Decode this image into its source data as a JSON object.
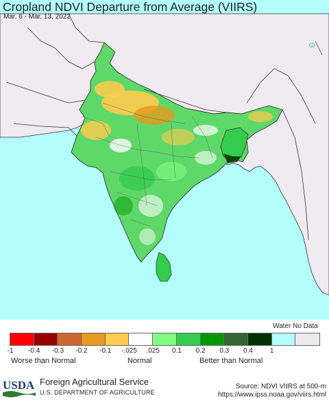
{
  "title": "Cropland NDVI Departure from Average (VIIRS)",
  "date_range": "Mar. 6 - Mar. 13, 2022",
  "colors": {
    "ocean": "#b3fdfd",
    "land_outside": "#efebf0",
    "no_data_land": "#ede9ee",
    "border": "#333333"
  },
  "legend": {
    "water_label": "Water",
    "no_data_label": "No Data",
    "swatch_colors": [
      "#ff0000",
      "#990000",
      "#cc6633",
      "#e69a1e",
      "#ffcc4d",
      "#ffffff",
      "#80ff80",
      "#33cc4d",
      "#009900",
      "#336633",
      "#003300",
      "#b3fdfd",
      "#ede9ee"
    ],
    "tick_labels": [
      "-1",
      "-0.4",
      "-0.3",
      "-0.2",
      "-0.1",
      "-.025",
      ".025",
      "0.1",
      "0.2",
      "0.3",
      "0.4",
      "1"
    ],
    "captions": {
      "worse": "Worse than Normal",
      "normal": "Normal",
      "better": "Better than Normal"
    }
  },
  "footer": {
    "logo_text": "USDA",
    "agency": "Foreign Agricultural Service",
    "department": "U.S. DEPARTMENT OF AGRICULTURE",
    "source_line1": "Source: NDVI VIIRS at 500-m",
    "source_line2": "https://www.ipss.noaa.gov/viirs.html"
  }
}
